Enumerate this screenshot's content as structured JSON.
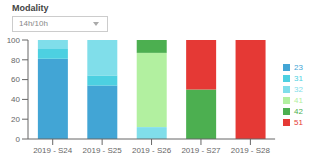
{
  "chart_data": {
    "type": "bar",
    "title": "Modality",
    "subtitle": "14h/10h",
    "categories": [
      "2019 - S24",
      "2019 - S25",
      "2019 - S26",
      "2019 - S27",
      "2019 - S28"
    ],
    "series": [
      {
        "name": "23",
        "color": "#42a5d5",
        "values": [
          81,
          54,
          0,
          0,
          0
        ]
      },
      {
        "name": "31",
        "color": "#4dd0e1",
        "values": [
          10,
          10,
          0,
          0,
          0
        ]
      },
      {
        "name": "32",
        "color": "#80deea",
        "values": [
          9,
          36,
          12,
          0,
          0
        ]
      },
      {
        "name": "41",
        "color": "#b2f0a0",
        "values": [
          0,
          0,
          75,
          0,
          0
        ]
      },
      {
        "name": "42",
        "color": "#4caf50",
        "values": [
          0,
          0,
          13,
          50,
          0
        ]
      },
      {
        "name": "51",
        "color": "#e53935",
        "values": [
          0,
          0,
          0,
          50,
          100
        ]
      }
    ],
    "ylim": [
      0,
      100
    ],
    "yticks": [
      0,
      20,
      40,
      60,
      80,
      100
    ],
    "stacked": true,
    "grid": false,
    "legend": "right"
  }
}
